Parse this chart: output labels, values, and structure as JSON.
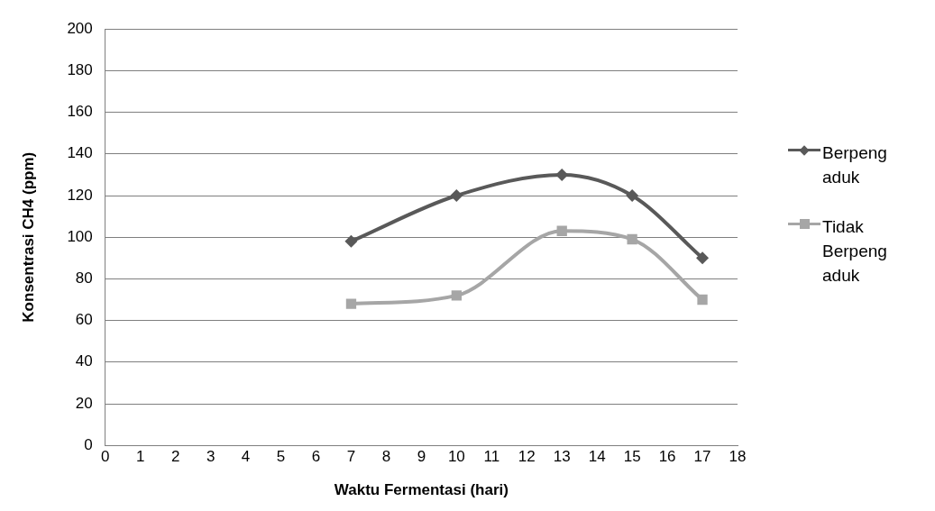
{
  "chart_data": {
    "type": "line",
    "xlabel": "Waktu Fermentasi (hari)",
    "ylabel": "Konsentrasi CH4 (ppm)",
    "x": [
      7,
      10,
      13,
      15,
      17
    ],
    "series": [
      {
        "name": "Berpengaduk",
        "color": "#595959",
        "marker": "diamond",
        "values": [
          98,
          120,
          130,
          120,
          90
        ]
      },
      {
        "name": "Tidak Berpengaduk",
        "color": "#a6a6a6",
        "marker": "square",
        "values": [
          68,
          72,
          103,
          99,
          70
        ]
      }
    ],
    "xlim": [
      0,
      18
    ],
    "xticks": [
      0,
      1,
      2,
      3,
      4,
      5,
      6,
      7,
      8,
      9,
      10,
      11,
      12,
      13,
      14,
      15,
      16,
      17,
      18
    ],
    "ylim": [
      0,
      200
    ],
    "yticks": [
      0,
      20,
      40,
      60,
      80,
      100,
      120,
      140,
      160,
      180,
      200
    ],
    "grid": "y",
    "legend": "right"
  }
}
